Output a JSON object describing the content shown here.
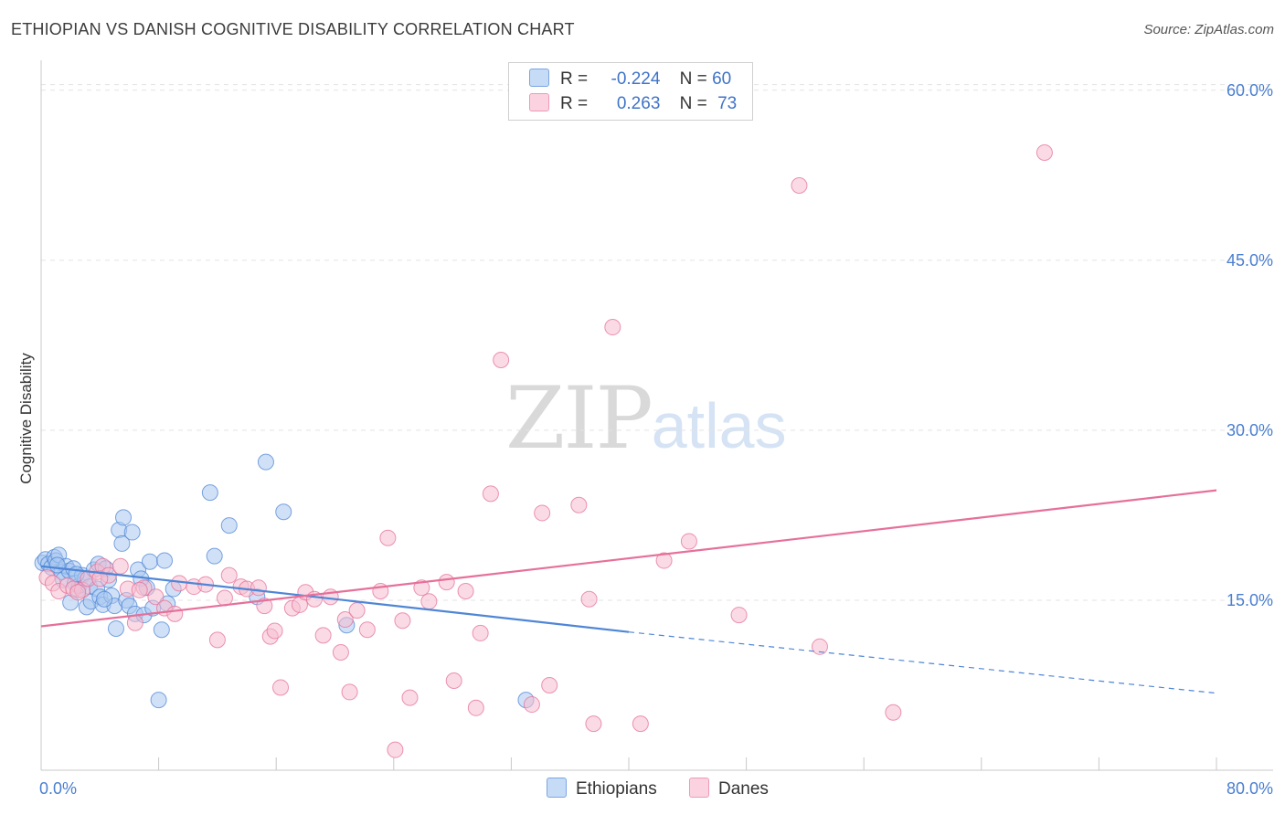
{
  "title": "ETHIOPIAN VS DANISH COGNITIVE DISABILITY CORRELATION CHART",
  "source": "Source: ZipAtlas.com",
  "watermark": {
    "part1": "ZIP",
    "part2": "atlas"
  },
  "legend_stats": [
    {
      "r_label": "R =",
      "r_value": "-0.224",
      "n_label": "N =",
      "n_value": "60",
      "color": "#9cc3f0"
    },
    {
      "r_label": "R =",
      "r_value": " 0.263",
      "n_label": "N =",
      "n_value": "73",
      "color": "#f6b3c8"
    }
  ],
  "chart_data": {
    "type": "scatter",
    "xlabel": "",
    "ylabel": "Cognitive Disability",
    "xlim": [
      0,
      80
    ],
    "ylim": [
      0,
      62
    ],
    "x_tick_labels": [
      "0.0%",
      "80.0%"
    ],
    "y_ticks": [
      15,
      30,
      45,
      60
    ],
    "y_tick_labels": [
      "15.0%",
      "30.0%",
      "45.0%",
      "60.0%"
    ],
    "grid": true,
    "legend_position": "bottom-center",
    "series": [
      {
        "name": "Ethiopians",
        "color": "#4f86d6",
        "fill": "#a9c8f0",
        "trend": {
          "x0": 0,
          "y0": 18.0,
          "x1": 40,
          "y1": 12.2,
          "dash_x1": 80,
          "dash_y1": 6.8
        },
        "points": [
          [
            0.1,
            18.3
          ],
          [
            0.3,
            18.6
          ],
          [
            0.5,
            18.2
          ],
          [
            0.7,
            17.9
          ],
          [
            0.9,
            18.8
          ],
          [
            1.0,
            18.5
          ],
          [
            1.2,
            19.0
          ],
          [
            1.4,
            17.5
          ],
          [
            1.5,
            16.8
          ],
          [
            1.7,
            18.0
          ],
          [
            1.9,
            17.6
          ],
          [
            2.0,
            14.8
          ],
          [
            2.2,
            17.8
          ],
          [
            2.3,
            16.5
          ],
          [
            2.5,
            15.9
          ],
          [
            2.6,
            16.3
          ],
          [
            2.8,
            17.2
          ],
          [
            3.0,
            16.9
          ],
          [
            3.1,
            14.4
          ],
          [
            3.3,
            16.2
          ],
          [
            3.4,
            14.9
          ],
          [
            3.6,
            17.7
          ],
          [
            3.8,
            16.0
          ],
          [
            3.9,
            18.2
          ],
          [
            4.0,
            15.3
          ],
          [
            4.2,
            14.6
          ],
          [
            4.4,
            17.8
          ],
          [
            4.6,
            16.8
          ],
          [
            4.8,
            15.4
          ],
          [
            5.0,
            14.5
          ],
          [
            5.1,
            12.5
          ],
          [
            5.3,
            21.2
          ],
          [
            5.5,
            20.0
          ],
          [
            5.6,
            22.3
          ],
          [
            5.8,
            15.0
          ],
          [
            6.0,
            14.5
          ],
          [
            6.2,
            21.0
          ],
          [
            6.4,
            13.8
          ],
          [
            6.6,
            17.7
          ],
          [
            6.8,
            16.9
          ],
          [
            7.0,
            13.7
          ],
          [
            7.2,
            16.1
          ],
          [
            7.4,
            18.4
          ],
          [
            7.6,
            14.3
          ],
          [
            8.0,
            6.2
          ],
          [
            8.2,
            12.4
          ],
          [
            8.4,
            18.5
          ],
          [
            8.6,
            14.7
          ],
          [
            9.0,
            16.0
          ],
          [
            11.5,
            24.5
          ],
          [
            11.8,
            18.9
          ],
          [
            12.8,
            21.6
          ],
          [
            15.3,
            27.2
          ],
          [
            16.5,
            22.8
          ],
          [
            14.7,
            15.3
          ],
          [
            20.8,
            12.8
          ],
          [
            33.0,
            6.2
          ],
          [
            2.4,
            17.3
          ],
          [
            4.3,
            15.1
          ],
          [
            1.1,
            18.1
          ]
        ]
      },
      {
        "name": "Danes",
        "color": "#e6709a",
        "fill": "#f6bdd0",
        "trend": {
          "x0": 0,
          "y0": 12.7,
          "x1": 80,
          "y1": 24.7
        },
        "points": [
          [
            0.4,
            17.0
          ],
          [
            0.8,
            16.5
          ],
          [
            1.2,
            15.8
          ],
          [
            1.8,
            16.3
          ],
          [
            2.2,
            16.0
          ],
          [
            2.8,
            15.9
          ],
          [
            3.2,
            16.9
          ],
          [
            3.8,
            17.5
          ],
          [
            4.2,
            18.0
          ],
          [
            4.6,
            17.2
          ],
          [
            5.4,
            18.0
          ],
          [
            5.9,
            16.0
          ],
          [
            6.4,
            13.0
          ],
          [
            7.0,
            16.1
          ],
          [
            7.8,
            15.3
          ],
          [
            8.4,
            14.3
          ],
          [
            9.1,
            13.8
          ],
          [
            10.4,
            16.2
          ],
          [
            11.2,
            16.4
          ],
          [
            12.0,
            11.5
          ],
          [
            12.5,
            15.2
          ],
          [
            12.8,
            17.2
          ],
          [
            13.6,
            16.2
          ],
          [
            14.0,
            16.0
          ],
          [
            14.8,
            16.1
          ],
          [
            15.2,
            14.5
          ],
          [
            15.6,
            11.8
          ],
          [
            15.9,
            12.3
          ],
          [
            16.3,
            7.3
          ],
          [
            17.1,
            14.3
          ],
          [
            17.6,
            14.6
          ],
          [
            18.0,
            15.7
          ],
          [
            18.6,
            15.1
          ],
          [
            19.2,
            11.9
          ],
          [
            19.7,
            15.3
          ],
          [
            20.4,
            10.4
          ],
          [
            20.7,
            13.3
          ],
          [
            21.0,
            6.9
          ],
          [
            21.5,
            14.1
          ],
          [
            22.2,
            12.4
          ],
          [
            23.1,
            15.8
          ],
          [
            23.6,
            20.5
          ],
          [
            24.1,
            1.8
          ],
          [
            24.6,
            13.2
          ],
          [
            25.1,
            6.4
          ],
          [
            25.9,
            16.1
          ],
          [
            26.4,
            14.9
          ],
          [
            27.6,
            16.6
          ],
          [
            28.1,
            7.9
          ],
          [
            28.9,
            15.8
          ],
          [
            29.6,
            5.5
          ],
          [
            29.9,
            12.1
          ],
          [
            30.6,
            24.4
          ],
          [
            31.3,
            36.2
          ],
          [
            33.4,
            5.8
          ],
          [
            34.1,
            22.7
          ],
          [
            34.6,
            7.5
          ],
          [
            36.6,
            23.4
          ],
          [
            37.3,
            15.1
          ],
          [
            37.6,
            4.1
          ],
          [
            38.9,
            39.1
          ],
          [
            40.8,
            4.1
          ],
          [
            42.4,
            18.5
          ],
          [
            44.1,
            20.2
          ],
          [
            47.5,
            13.7
          ],
          [
            51.6,
            51.6
          ],
          [
            53.0,
            10.9
          ],
          [
            58.0,
            5.1
          ],
          [
            68.3,
            54.5
          ],
          [
            4.0,
            16.9
          ],
          [
            2.5,
            15.7
          ],
          [
            6.7,
            15.9
          ],
          [
            9.4,
            16.5
          ]
        ]
      }
    ]
  }
}
